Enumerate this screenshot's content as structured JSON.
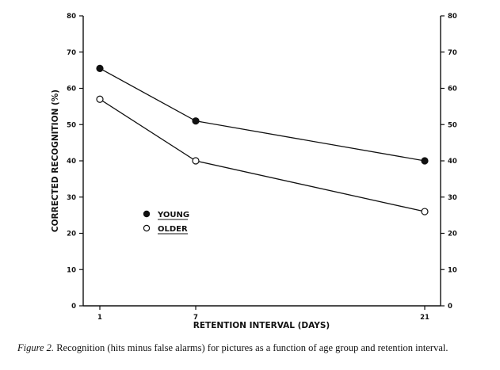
{
  "chart_data": {
    "type": "line",
    "xlabel": "RETENTION INTERVAL (DAYS)",
    "ylabel": "CORRECTED RECOGNITION (%)",
    "x_categories": [
      "1",
      "7",
      "21"
    ],
    "x_values": [
      1,
      7,
      21
    ],
    "ylim": [
      0,
      80
    ],
    "yticks": [
      0,
      10,
      20,
      30,
      40,
      50,
      60,
      70,
      80
    ],
    "y_tick_labels": [
      "0",
      "10",
      "20",
      "30",
      "40",
      "50",
      "60",
      "70",
      "80"
    ],
    "right_axis": "mirrored",
    "grid": false,
    "legend_position": "lower-left",
    "series": [
      {
        "name": "YOUNG",
        "marker": "filled-circle",
        "values": [
          65.5,
          51,
          40
        ]
      },
      {
        "name": "OLDER",
        "marker": "open-circle",
        "values": [
          57,
          40,
          26
        ]
      }
    ]
  },
  "caption": {
    "figure_label": "Figure 2.",
    "text": "Recognition (hits minus false alarms) for pictures as a function of age group and retention interval."
  },
  "colors": {
    "ink": "#111111",
    "background": "#ffffff"
  }
}
